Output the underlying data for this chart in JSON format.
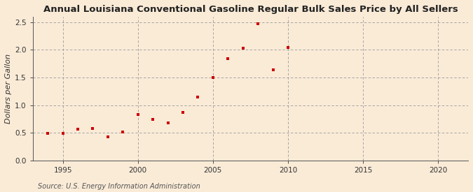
{
  "title": "Annual Louisiana Conventional Gasoline Regular Bulk Sales Price by All Sellers",
  "ylabel": "Dollars per Gallon",
  "source": "Source: U.S. Energy Information Administration",
  "background_color": "#faebd7",
  "plot_bg_color": "#faebd7",
  "marker_color": "#cc0000",
  "years": [
    1994,
    1995,
    1996,
    1997,
    1998,
    1999,
    2000,
    2001,
    2002,
    2003,
    2004,
    2005,
    2006,
    2007,
    2008,
    2009,
    2010
  ],
  "values": [
    0.49,
    0.49,
    0.57,
    0.58,
    0.43,
    0.51,
    0.83,
    0.74,
    0.68,
    0.87,
    1.15,
    1.5,
    1.84,
    2.03,
    2.47,
    1.64,
    2.04
  ],
  "xlim": [
    1993,
    2022
  ],
  "ylim": [
    0.0,
    2.6
  ],
  "xticks": [
    1995,
    2000,
    2005,
    2010,
    2015,
    2020
  ],
  "yticks": [
    0.0,
    0.5,
    1.0,
    1.5,
    2.0,
    2.5
  ],
  "title_fontsize": 9.5,
  "label_fontsize": 8.0,
  "tick_fontsize": 7.5,
  "source_fontsize": 7.0,
  "grid_color": "#999999",
  "spine_color": "#555555"
}
